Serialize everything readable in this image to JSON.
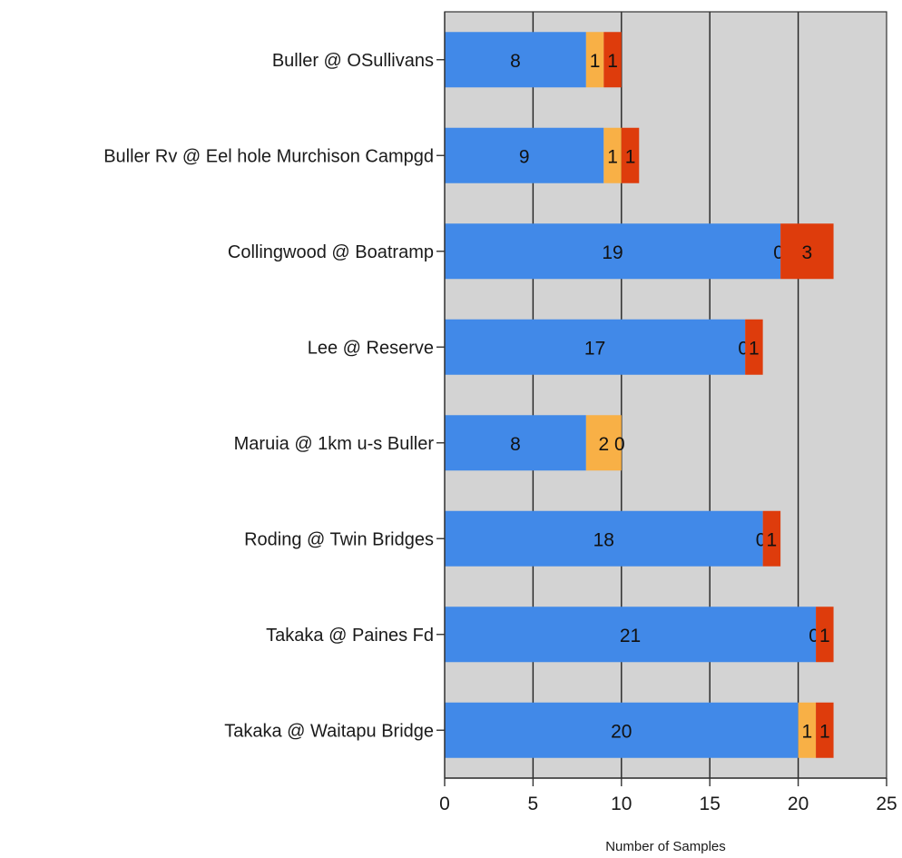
{
  "chart_data": {
    "type": "bar",
    "orientation": "horizontal",
    "stacked": true,
    "categories": [
      "Buller @ OSullivans",
      "Buller Rv @ Eel hole Murchison Campgd",
      "Collingwood @ Boatramp",
      "Lee @ Reserve",
      "Maruia @ 1km u-s Buller",
      "Roding @ Twin Bridges",
      "Takaka @ Paines Fd",
      "Takaka @ Waitapu Bridge"
    ],
    "series": [
      {
        "values": [
          8,
          9,
          19,
          17,
          8,
          18,
          21,
          20
        ],
        "color": "#4189e8"
      },
      {
        "values": [
          1,
          1,
          0,
          0,
          2,
          0,
          0,
          1
        ],
        "color": "#f8b046"
      },
      {
        "values": [
          1,
          1,
          3,
          1,
          0,
          1,
          1,
          1
        ],
        "color": "#de3c0c"
      }
    ],
    "xlabel": "Number of Samples",
    "ylabel": "",
    "xlim": [
      0,
      25
    ],
    "xticks": [
      0,
      5,
      10,
      15,
      20,
      25
    ],
    "grid": true,
    "background": "#d3d3d3",
    "legend": "none"
  }
}
